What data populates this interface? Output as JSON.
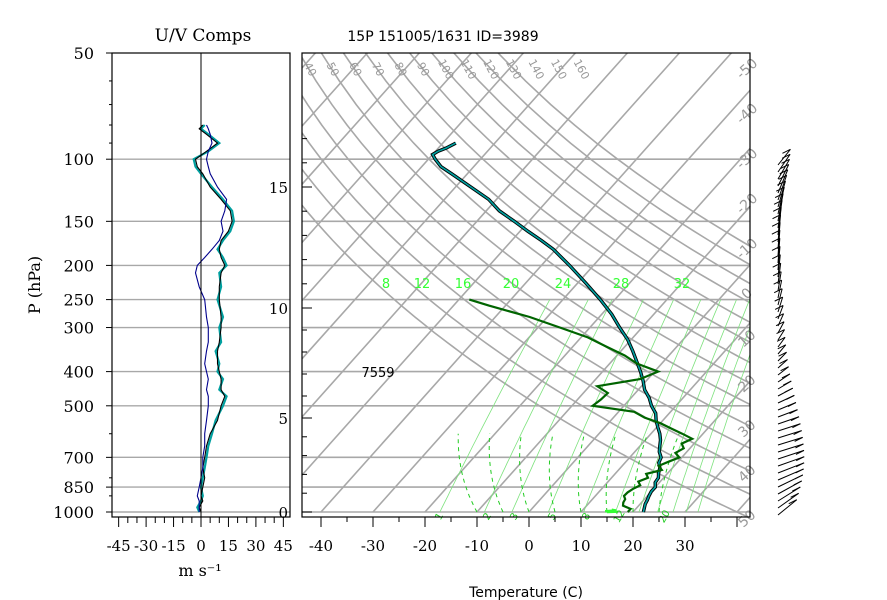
{
  "chart_data": [
    {
      "type": "line",
      "title": "U/V Comps",
      "xlabel": "m s⁻¹",
      "ylabel": "P (hPa)",
      "xlim": [
        -50,
        50
      ],
      "ylim": [
        1000,
        50
      ],
      "y_log": true,
      "grid": true,
      "xticks": [
        "-45",
        "-30",
        "-15",
        "0",
        "15",
        "30",
        "45"
      ],
      "yticks": [
        "50",
        "100",
        "150",
        "200",
        "250",
        "300",
        "400",
        "500",
        "700",
        "850",
        "1000"
      ],
      "series": [
        {
          "color": "#00a0a0",
          "p": [
            1000,
            970,
            930,
            900,
            850,
            800,
            750,
            700,
            650,
            600,
            550,
            500,
            470,
            450,
            420,
            400,
            380,
            350,
            330,
            300,
            280,
            250,
            230,
            210,
            200,
            190,
            180,
            170,
            160,
            150,
            140,
            130,
            120,
            110,
            105,
            100,
            95,
            90,
            85,
            82,
            80
          ],
          "values": [
            -1,
            -2,
            0,
            1,
            0,
            1,
            2,
            3,
            4,
            6,
            8,
            12,
            14,
            10,
            12,
            9,
            10,
            8,
            11,
            10,
            12,
            9,
            11,
            10,
            14,
            12,
            9,
            12,
            16,
            18,
            17,
            12,
            6,
            0,
            -3,
            -4,
            4,
            10,
            4,
            0,
            2
          ]
        },
        {
          "color": "#000000",
          "p": [
            1000,
            970,
            930,
            900,
            850,
            800,
            750,
            700,
            650,
            600,
            550,
            500,
            470,
            450,
            420,
            400,
            380,
            350,
            330,
            300,
            280,
            250,
            230,
            210,
            200,
            190,
            180,
            170,
            160,
            150,
            140,
            130,
            120,
            110,
            105,
            100,
            95,
            90,
            85,
            82,
            80
          ],
          "values": [
            0,
            -1,
            1,
            0,
            1,
            2,
            1,
            2,
            3,
            5,
            9,
            11,
            13,
            11,
            11,
            10,
            9,
            9,
            10,
            11,
            11,
            10,
            10,
            11,
            13,
            11,
            10,
            11,
            15,
            17,
            16,
            11,
            5,
            1,
            -2,
            -3,
            3,
            9,
            3,
            -1,
            1
          ]
        },
        {
          "color": "#00008c",
          "p": [
            1000,
            970,
            930,
            900,
            850,
            800,
            750,
            700,
            650,
            600,
            550,
            500,
            470,
            450,
            420,
            400,
            380,
            350,
            330,
            300,
            280,
            250,
            230,
            210,
            200,
            190,
            180,
            170,
            160,
            150,
            140,
            130,
            120,
            110,
            105,
            100,
            95,
            90,
            85,
            82,
            80
          ],
          "values": [
            -1,
            -1,
            -1,
            -2,
            -1,
            0,
            1,
            1,
            2,
            2,
            3,
            4,
            4,
            3,
            4,
            3,
            2,
            3,
            4,
            4,
            3,
            2,
            -1,
            -3,
            -2,
            2,
            6,
            10,
            12,
            11,
            13,
            14,
            9,
            5,
            4,
            3,
            4,
            6,
            5,
            4,
            3
          ]
        }
      ]
    },
    {
      "type": "line",
      "title": "15P 151005/1631 ID=3989",
      "xlabel": "Temperature (C)",
      "ylabel": "",
      "xlim": [
        -43,
        40
      ],
      "ylim": [
        1000,
        50
      ],
      "y_log": true,
      "skew": true,
      "xticks": [
        "-40",
        "-30",
        "-20",
        "-10",
        "0",
        "10",
        "20",
        "30"
      ],
      "height_axis_labels": [
        "0",
        "5",
        "10",
        "15"
      ],
      "theta_labels": [
        "40",
        "50",
        "60",
        "70",
        "80",
        "90",
        "100",
        "110",
        "120",
        "130",
        "140",
        "150",
        "160"
      ],
      "isotherm_labels": [
        "-50",
        "-40",
        "-30",
        "-20",
        "-10",
        "0",
        "10",
        "20",
        "30",
        "40",
        "50"
      ],
      "mixing_ratio_labels": [
        "8",
        "12",
        "16",
        "20",
        "24",
        "28",
        "32"
      ],
      "annotation": "7559",
      "series": [
        {
          "name_hidden": "temperature",
          "color": "#00a0a0",
          "p": [
            1000,
            975,
            950,
            925,
            900,
            875,
            850,
            825,
            800,
            775,
            750,
            725,
            700,
            675,
            650,
            625,
            600,
            575,
            550,
            525,
            500,
            475,
            450,
            425,
            400,
            375,
            350,
            325,
            300,
            275,
            250,
            225,
            200,
            190,
            180,
            170,
            160,
            150,
            140,
            130,
            120,
            110,
            105,
            100,
            97,
            95,
            93,
            90
          ],
          "values": [
            22,
            21.5,
            21,
            20.7,
            20.3,
            20,
            20,
            19.2,
            19,
            18.2,
            17.6,
            16.5,
            16,
            14.7,
            13.8,
            12.9,
            11.7,
            10.2,
            8.7,
            7.4,
            5.3,
            3.5,
            1.2,
            -0.6,
            -2.7,
            -5.1,
            -7.7,
            -10.6,
            -14.3,
            -18.1,
            -22.8,
            -28.3,
            -34.6,
            -37.5,
            -40.5,
            -44.3,
            -48.5,
            -52.8,
            -57.5,
            -61.5,
            -67,
            -73,
            -76.3,
            -78.7,
            -80,
            -79.5,
            -78.5,
            -77.5
          ]
        },
        {
          "name_hidden": "dewpoint",
          "color": "#006400",
          "p": [
            1000,
            980,
            960,
            940,
            920,
            900,
            880,
            860,
            840,
            820,
            800,
            780,
            760,
            740,
            720,
            700,
            680,
            660,
            640,
            620,
            600,
            580,
            560,
            540,
            520,
            500,
            480,
            460,
            440,
            420,
            400,
            380,
            360,
            340,
            320,
            300,
            280,
            260,
            250
          ],
          "values": [
            19,
            19,
            17,
            16.5,
            16.3,
            15.5,
            15.6,
            16,
            16.8,
            15.8,
            17,
            16,
            18.3,
            17,
            18.2,
            19.5,
            18,
            18.8,
            17.6,
            18.8,
            16,
            13,
            10,
            6,
            3,
            -6,
            -5.5,
            -5.3,
            -8.5,
            -1.5,
            0.7,
            -4.7,
            -8.5,
            -13.5,
            -18.7,
            -25.8,
            -33.4,
            -43.2,
            -48
          ]
        }
      ]
    }
  ]
}
